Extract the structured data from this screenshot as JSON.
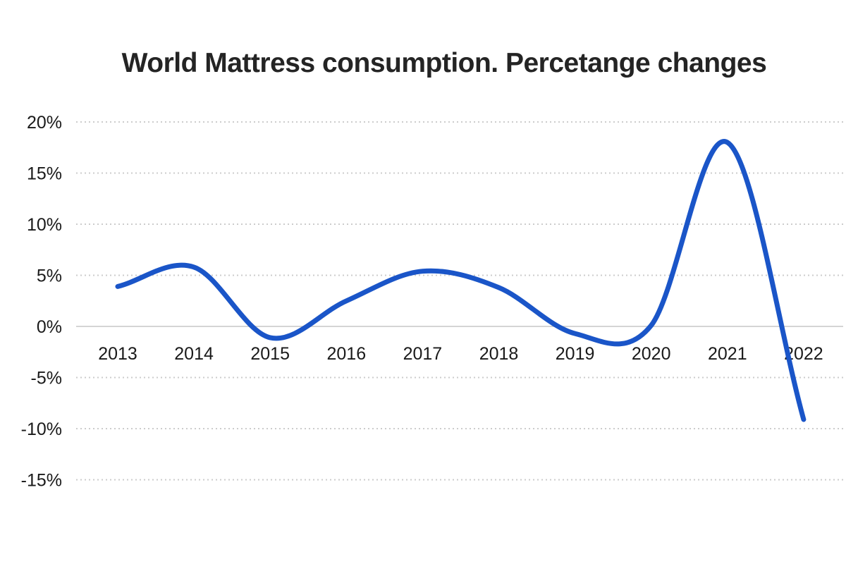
{
  "title": "World Mattress consumption. Percetange changes",
  "chart_data": {
    "type": "line",
    "title": "World Mattress consumption. Percetange changes",
    "categories": [
      "2013",
      "2014",
      "2015",
      "2016",
      "2017",
      "2018",
      "2019",
      "2020",
      "2021",
      "2022"
    ],
    "values": [
      3.9,
      5.8,
      -1.1,
      2.5,
      5.4,
      3.8,
      -0.7,
      0.1,
      18,
      -9.1
    ],
    "xlabel": "",
    "ylabel": "",
    "ylim": [
      -15,
      20
    ],
    "y_ticks": {
      "values": [
        20,
        15,
        10,
        5,
        0,
        -5,
        -10,
        -15
      ],
      "labels": [
        "20%",
        "15%",
        "10%",
        "5%",
        "0%",
        "-5%",
        "-10%",
        "-15%"
      ]
    },
    "legend": "none",
    "smoothing": "spline",
    "grid": {
      "horizontal": "dotted",
      "zero_line": "solid"
    },
    "colors": {
      "line": "#1A55C8",
      "grid_dotted": "#cccccc",
      "zero_line": "#c6c6c6",
      "tick_text": "#1a1a1a",
      "title_text": "#242424",
      "background": "#ffffff"
    }
  }
}
